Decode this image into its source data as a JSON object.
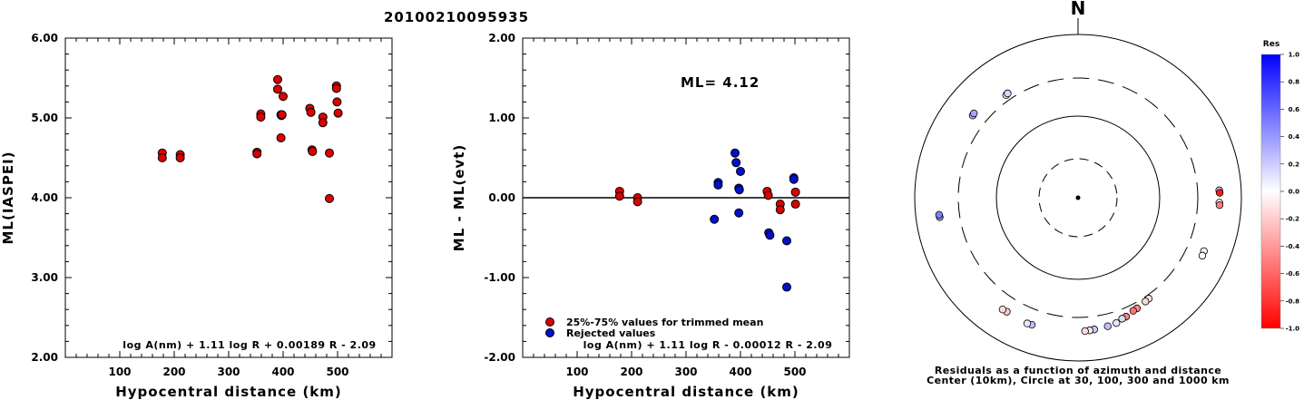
{
  "title": "20100210095935",
  "left_panel": {
    "ylabel": "ML(IASPEI)",
    "xlabel": "Hypocentral distance (km)",
    "formula": "log A(nm) + 1.11 log R + 0.00189 R - 2.09",
    "x_ticks": [
      "100",
      "200",
      "300",
      "400",
      "500"
    ],
    "y_ticks": [
      "2.00",
      "3.00",
      "4.00",
      "5.00",
      "6.00"
    ]
  },
  "middle_panel": {
    "ylabel": "ML - ML(evt)",
    "xlabel": "Hypocentral distance (km)",
    "ml_label": "ML= 4.12",
    "formula": "log A(nm) + 1.11 log R - 0.00012 R - 2.09",
    "legend": [
      "25%-75% values for trimmed mean",
      "Rejected values"
    ],
    "x_ticks": [
      "100",
      "200",
      "300",
      "400",
      "500"
    ],
    "y_ticks": [
      "-2.00",
      "-1.00",
      "0.00",
      "1.00",
      "2.00"
    ]
  },
  "right_panel": {
    "north_label": "N",
    "caption_line1": "Residuals as a function of azimuth and distance",
    "caption_line2": "Center (10km), Circle at 30, 100, 300 and 1000 km",
    "colorbar_title": "Res",
    "colorbar_ticks": [
      "1.0",
      "0.8",
      "0.6",
      "0.4",
      "0.2",
      "0.0",
      "-0.2",
      "-0.4",
      "-0.6",
      "-0.8",
      "-1.0"
    ]
  },
  "colors": {
    "trimmed": "#dd0000",
    "rejected": "#0010cc",
    "positive_residual": "#0000ff",
    "negative_residual": "#ff0000"
  },
  "chart_data": [
    {
      "type": "scatter",
      "title": "20100210095935",
      "xlabel": "Hypocentral distance (km)",
      "ylabel": "ML(IASPEI)",
      "xlim": [
        0,
        600
      ],
      "ylim": [
        2.0,
        6.0
      ],
      "series": [
        {
          "x": [
            178,
            178,
            211,
            211,
            352,
            352,
            359,
            359,
            390,
            390,
            396,
            396,
            397,
            398,
            400,
            449,
            451,
            453,
            454,
            473,
            473,
            485,
            485,
            498,
            498,
            499,
            501
          ],
          "y": [
            4.56,
            4.5,
            4.54,
            4.5,
            4.57,
            4.55,
            5.05,
            5.01,
            5.48,
            5.36,
            5.04,
            4.75,
            5.03,
            5.04,
            5.27,
            5.12,
            5.07,
            4.6,
            4.58,
            5.01,
            4.94,
            4.56,
            3.99,
            5.4,
            5.37,
            5.2,
            5.06
          ]
        }
      ]
    },
    {
      "type": "scatter",
      "xlabel": "Hypocentral distance (km)",
      "ylabel": "ML - ML(evt)",
      "xlim": [
        0,
        600
      ],
      "ylim": [
        -2.0,
        2.0
      ],
      "annotations": [
        "ML= 4.12"
      ],
      "series": [
        {
          "name": "25%-75% values for trimmed mean",
          "x": [
            178,
            178,
            211,
            211,
            449,
            451,
            473,
            473,
            501,
            501
          ],
          "y": [
            0.08,
            0.02,
            0.0,
            -0.05,
            0.08,
            0.03,
            -0.08,
            -0.15,
            0.07,
            -0.08
          ]
        },
        {
          "name": "Rejected values",
          "x": [
            352,
            359,
            359,
            390,
            392,
            397,
            397,
            398,
            400,
            452,
            454,
            485,
            485,
            498,
            498
          ],
          "y": [
            -0.27,
            0.19,
            0.16,
            0.56,
            0.44,
            0.12,
            -0.19,
            0.1,
            0.33,
            -0.44,
            -0.47,
            -0.54,
            -1.12,
            0.25,
            0.23
          ]
        }
      ]
    },
    {
      "type": "scatter",
      "title": "Residuals as a function of azimuth and distance",
      "note": "Center (10km), Circle at 30, 100, 300 and 1000 km",
      "colorbar": {
        "label": "Res",
        "range": [
          -1.0,
          1.0
        ]
      },
      "series": [
        {
          "name": "stations",
          "azimuth_deg": [
            308,
            309,
            325,
            326,
            262,
            263,
            87,
            88,
            92,
            93,
            113,
            115,
            145,
            147,
            152,
            154,
            158,
            160,
            163,
            167,
            173,
            175,
            177,
            200,
            202,
            212,
            214
          ],
          "distance_km": [
            440,
            445,
            350,
            355,
            520,
            525,
            545,
            550,
            545,
            550,
            480,
            485,
            330,
            335,
            350,
            355,
            380,
            385,
            410,
            420,
            430,
            435,
            440,
            460,
            465,
            450,
            455
          ],
          "residual": [
            0.3,
            0.35,
            0.1,
            0.15,
            0.45,
            0.5,
            0.2,
            -0.9,
            -0.05,
            -0.5,
            -0.05,
            -0.02,
            -0.1,
            -0.15,
            -0.45,
            -0.55,
            -0.5,
            0.15,
            0.1,
            0.25,
            0.2,
            -0.1,
            -0.15,
            0.25,
            0.1,
            -0.2,
            -0.15
          ]
        }
      ]
    }
  ]
}
